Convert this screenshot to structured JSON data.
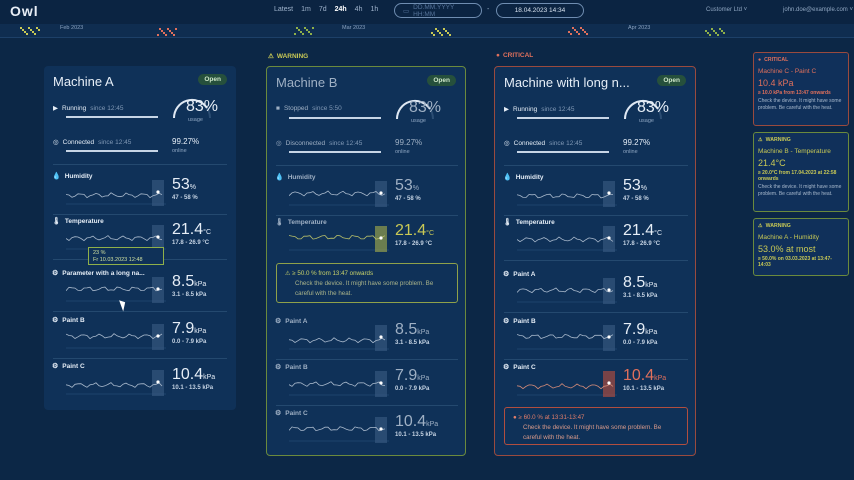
{
  "logo": "Owl",
  "ranges": [
    "Latest",
    "1m",
    "7d",
    "24h",
    "4h",
    "1h"
  ],
  "range_active": "24h",
  "date_placeholder": "DD.MM.YYYY HH:MM",
  "date_value": "18.04.2023 14:34",
  "customer": "Customer Ltd ˅",
  "email": "john.doe@example.com ˅",
  "timeline": [
    "Feb 2023",
    "Mar 2023",
    "Apr 2023"
  ],
  "labels": {
    "warning": "WARNING",
    "critical": "CRITICAL"
  },
  "machines": [
    {
      "title": "Machine A",
      "open": "Open",
      "running": "Running",
      "run_since": "since 12:45",
      "connected": "Connected",
      "con_since": "since 12:45",
      "usage": "83",
      "usage_unit": "%",
      "usage_label": "usage",
      "online": "99.27%",
      "online_label": "online",
      "metrics": [
        {
          "label": "Humidity",
          "value": "53",
          "unit": "%",
          "range": "47 - 58 %"
        },
        {
          "label": "Temperature",
          "value": "21.4",
          "unit": "°C",
          "range": "17.8 - 26.9 °C"
        },
        {
          "label": "Parameter with a long na...",
          "value": "8.5",
          "unit": "kPa",
          "range": "3.1 - 8.5 kPa"
        },
        {
          "label": "Paint B",
          "value": "7.9",
          "unit": "kPa",
          "range": "0.0 - 7.9 kPa"
        },
        {
          "label": "Paint C",
          "value": "10.4",
          "unit": "kPa",
          "range": "10.1 - 13.5 kPa"
        }
      ]
    },
    {
      "title": "Machine B",
      "open": "Open",
      "running": "Stopped",
      "run_since": "since 5:50",
      "connected": "Disconnected",
      "con_since": "since 12:45",
      "usage": "83",
      "usage_unit": "%",
      "usage_label": "usage",
      "online": "99.27%",
      "online_label": "online",
      "metrics": [
        {
          "label": "Humidity",
          "value": "53",
          "unit": "%",
          "range": "47 - 58 %"
        },
        {
          "label": "Temperature",
          "value": "21.4",
          "unit": "°C",
          "range": "17.8 - 26.9 °C"
        },
        {
          "label": "Paint A",
          "value": "8.5",
          "unit": "kPa",
          "range": "3.1 - 8.5 kPa"
        },
        {
          "label": "Paint B",
          "value": "7.9",
          "unit": "kPa",
          "range": "0.0 - 7.9 kPa"
        },
        {
          "label": "Paint C",
          "value": "10.4",
          "unit": "kPa",
          "range": "10.1 - 13.5 kPa"
        }
      ],
      "alert_title": "≥ 50.0 % from 13:47 onwards",
      "alert_msg": "Check the device. It might have some problem. Be careful with the heat."
    },
    {
      "title": "Machine with long n...",
      "open": "Open",
      "running": "Running",
      "run_since": "since 12:45",
      "connected": "Connected",
      "con_since": "since 12:45",
      "usage": "83",
      "usage_unit": "%",
      "usage_label": "usage",
      "online": "99.27%",
      "online_label": "online",
      "metrics": [
        {
          "label": "Humidity",
          "value": "53",
          "unit": "%",
          "range": "47 - 58 %"
        },
        {
          "label": "Temperature",
          "value": "21.4",
          "unit": "°C",
          "range": "17.8 - 26.9 °C"
        },
        {
          "label": "Paint A",
          "value": "8.5",
          "unit": "kPa",
          "range": "3.1 - 8.5 kPa"
        },
        {
          "label": "Paint B",
          "value": "7.9",
          "unit": "kPa",
          "range": "0.0 - 7.9 kPa"
        },
        {
          "label": "Paint C",
          "value": "10.4",
          "unit": "kPa",
          "range": "10.1 - 13.5 kPa"
        }
      ],
      "alert_title": "≥ 60.0 % at 13:31-13:47",
      "alert_msg": "Check the device. It might have some problem. Be careful with the heat."
    }
  ],
  "tooltip": {
    "value": "23 %",
    "time": "Fr 10.03.2023 12:48"
  },
  "side": [
    {
      "level": "CRITICAL",
      "name": "Machine C - Paint C",
      "value": "10.4 kPa",
      "time": "≥ 10.0 kPa from 13:47 onwards",
      "msg": "Check the device. It might have some problem. Be careful with the heat."
    },
    {
      "level": "WARNING",
      "name": "Machine B - Temperature",
      "value": "21.4°C",
      "time": "≥ 20.0°C from 17.04.2023 at 22:58 onwards",
      "msg": "Check the device. It might have some problem. Be careful with the heat."
    },
    {
      "level": "WARNING",
      "name": "Machine A - Humidity",
      "value": "53.0% at most",
      "time": "≥ 50.0% on 03.03.2023 at 13:47-14:03",
      "msg": ""
    }
  ],
  "colors": {
    "warning": "#c9c955",
    "critical": "#e0705c",
    "ok": "#26503c",
    "bg": "#0c2746"
  }
}
